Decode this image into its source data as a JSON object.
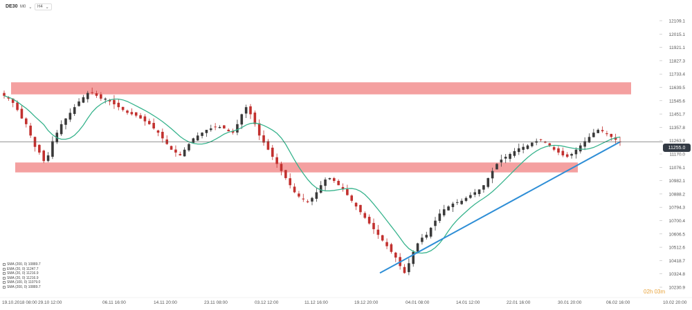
{
  "toolbar": {
    "symbol": "DE30",
    "timeframe_1": "M0",
    "timeframe_2": "H4"
  },
  "current_price": "11255.0",
  "countdown": "02h 03m",
  "legend": [
    "SMA (200, 0) 10889.7",
    "EMA (20, 0) 11247.7",
    "SMA (20, 0) 11216.9",
    "SMA (20, 0) 11216.9",
    "SMA (100, 0) 11079.0",
    "SMA (200, 0) 10889.7"
  ],
  "colors": {
    "zone": "#f08080",
    "ma_line": "#36b38c",
    "trendline": "#2e8ed6",
    "up_candle": "#3a3a3a",
    "down_candle": "#c2312f",
    "price_line": "#555555",
    "countdown": "#e8a33b"
  },
  "chart_data": {
    "type": "candlestick",
    "y_axis_ticks": [
      "12109.1",
      "12015.1",
      "11921.1",
      "11827.3",
      "11733.4",
      "11639.5",
      "11545.6",
      "11451.7",
      "11357.8",
      "11263.9",
      "11170.0",
      "11076.1",
      "10982.1",
      "10888.2",
      "10794.3",
      "10700.4",
      "10606.5",
      "10512.6",
      "10418.7",
      "10324.8",
      "10230.9"
    ],
    "x_axis_ticks": [
      "19.10.2018 08:00",
      "29.10 12:00",
      "06.11 16:00",
      "14.11 20:00",
      "23.11 08:00",
      "03.12 12:00",
      "11.12 16:00",
      "19.12 20:00",
      "04.01 08:00",
      "14.01 12:00",
      "22.01 16:00",
      "30.01 20:00",
      "06.02 16:00",
      "10.02 20:00"
    ],
    "ylim": [
      10230.9,
      12109.1
    ],
    "resistance_zone": [
      11590,
      11675
    ],
    "support_zone": [
      11040,
      11110
    ],
    "trendline": {
      "from": {
        "x": "19.12 20:00",
        "y": 10331
      },
      "to": {
        "x": "06.02 16:00",
        "y": 11255
      }
    },
    "last_price": 11255.0,
    "close_path": [
      11580,
      11560,
      11530,
      11480,
      11420,
      11380,
      11300,
      11220,
      11180,
      11120,
      11160,
      11260,
      11320,
      11380,
      11420,
      11460,
      11500,
      11540,
      11570,
      11600,
      11600,
      11580,
      11560,
      11560,
      11540,
      11520,
      11500,
      11480,
      11460,
      11450,
      11440,
      11420,
      11400,
      11380,
      11350,
      11320,
      11280,
      11240,
      11200,
      11180,
      11160,
      11200,
      11240,
      11280,
      11300,
      11320,
      11340,
      11350,
      11360,
      11360,
      11350,
      11330,
      11320,
      11380,
      11450,
      11500,
      11450,
      11380,
      11300,
      11250,
      11200,
      11150,
      11100,
      11050,
      11000,
      10950,
      10900,
      10870,
      10850,
      10830,
      10860,
      10900,
      10950,
      10990,
      11000,
      10980,
      10950,
      10920,
      10880,
      10840,
      10800,
      10760,
      10720,
      10680,
      10640,
      10600,
      10560,
      10520,
      10480,
      10440,
      10380,
      10331,
      10400,
      10480,
      10540,
      10580,
      10600,
      10650,
      10700,
      10750,
      10780,
      10800,
      10820,
      10830,
      10840,
      10860,
      10880,
      10900,
      10920,
      10950,
      11000,
      11050,
      11100,
      11130,
      11150,
      11170,
      11190,
      11210,
      11220,
      11230,
      11250,
      11260,
      11270,
      11250,
      11230,
      11200,
      11180,
      11160,
      11150,
      11170,
      11200,
      11230,
      11260,
      11290,
      11320,
      11340,
      11330,
      11310,
      11290,
      11270,
      11255
    ]
  }
}
